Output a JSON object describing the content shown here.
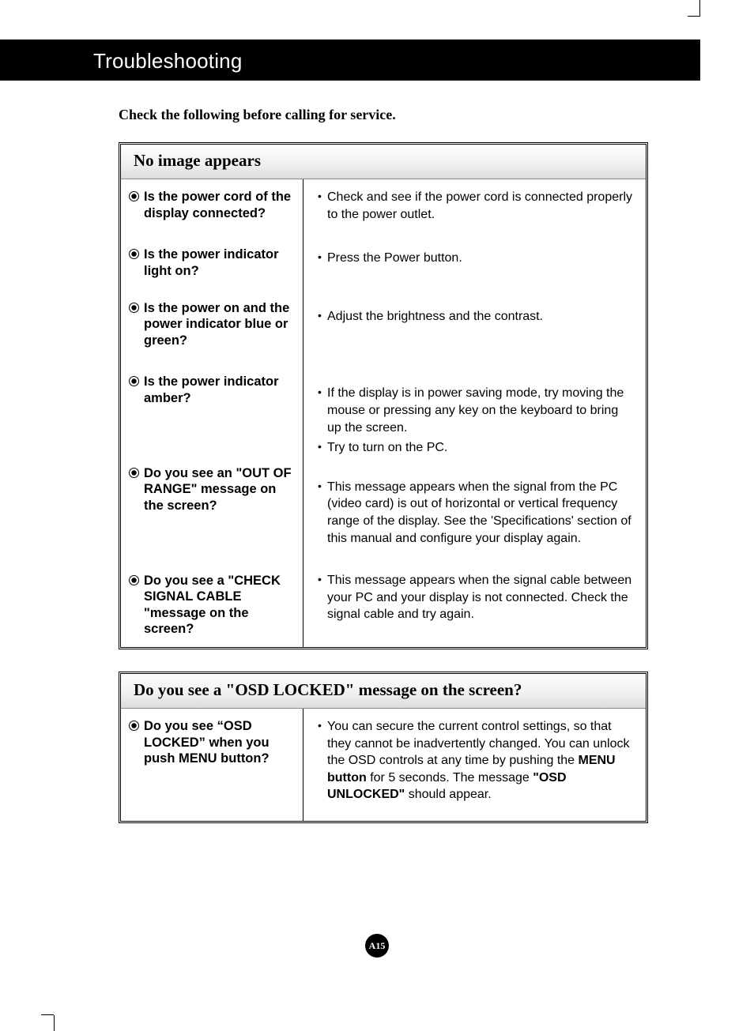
{
  "colors": {
    "page_bg": "#ffffff",
    "band_bg": "#000000",
    "band_text": "#ffffff",
    "text": "#000000",
    "header_grad_start": "#fefefe",
    "header_grad_mid": "#efefef",
    "header_grad_end": "#dcdcdc",
    "rule": "#000000",
    "divider": "#000000"
  },
  "typography": {
    "title_fontsize": 26,
    "intro_fontsize": 18,
    "section_header_fontsize": 21,
    "question_fontsize": 16.5,
    "answer_fontsize": 16
  },
  "section_title": "Troubleshooting",
  "intro": "Check the following before calling for service.",
  "page_number": "A15",
  "boxes": [
    {
      "header": "No image appears",
      "rows": [
        {
          "q": "Is the power cord of the display connected?",
          "a": [
            "Check and see if the power cord is connected properly to the power outlet."
          ]
        },
        {
          "q": "Is the power indicator light on?",
          "a": [
            "Press the Power button."
          ]
        },
        {
          "q": "Is the power on and the power indicator blue or green?",
          "a": [
            "Adjust the brightness and the contrast."
          ]
        },
        {
          "q": "Is the power indicator amber?",
          "a": [
            "If the display is in power saving mode, try moving the mouse or pressing any key on the keyboard to bring up the screen.",
            "Try to turn on the PC."
          ]
        },
        {
          "q": "Do you see an \"OUT OF RANGE\" message on the screen?",
          "a": [
            "This message appears when the signal from the PC (video card) is out of horizontal or vertical frequency range of the display. See the 'Specifications' section of this manual and configure your display again."
          ]
        },
        {
          "q": "Do you see a \"CHECK SIGNAL CABLE \"message on the screen?",
          "a": [
            "This message appears when the signal cable between your PC and your display is not connected. Check the signal cable and try again."
          ]
        }
      ]
    },
    {
      "header": "Do you see a \"OSD LOCKED\" message on the screen?",
      "rows": [
        {
          "q": "Do you see “OSD LOCKED” when you push MENU button?",
          "a_html": "You can secure the current control settings, so that they cannot be inadvertently changed. You can unlock the OSD controls at any time by pushing the <b>MENU button</b> for 5 seconds. The message <b>\"OSD UNLOCKED\"</b> should appear."
        }
      ]
    }
  ]
}
